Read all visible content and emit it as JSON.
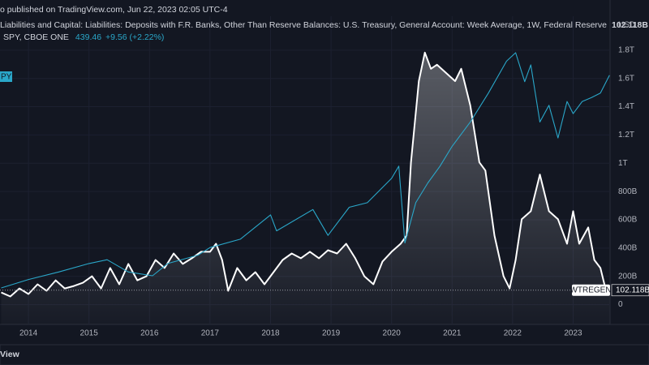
{
  "header": {
    "published": "o published on TradingView.com, Jun 22, 2023 02:05 UTC-4",
    "logo": "View"
  },
  "chart_data": {
    "type": "line",
    "title": "Liabilities and Capital: Liabilities: Deposits with F.R. Banks, Other Than Reserve Balances: U.S. Treasury, General Account: Week Average, 1W, Federal Reserve",
    "subtitle": "SPY, CBOE ONE",
    "change": "+9.56 (+2.22%)",
    "unit": "USD",
    "grid": true,
    "series": [
      {
        "name": "WTREGEN",
        "color": "#ffffff",
        "axis": "y",
        "x": [
          2013.55,
          2013.7,
          2013.85,
          2014.0,
          2014.15,
          2014.3,
          2014.45,
          2014.6,
          2014.75,
          2014.9,
          2015.05,
          2015.2,
          2015.35,
          2015.5,
          2015.65,
          2015.8,
          2015.95,
          2016.1,
          2016.25,
          2016.4,
          2016.55,
          2016.7,
          2016.85,
          2017.0,
          2017.1,
          2017.2,
          2017.3,
          2017.45,
          2017.6,
          2017.75,
          2017.9,
          2018.05,
          2018.2,
          2018.35,
          2018.5,
          2018.65,
          2018.8,
          2018.95,
          2019.1,
          2019.25,
          2019.4,
          2019.55,
          2019.7,
          2019.85,
          2020.0,
          2020.15,
          2020.25,
          2020.32,
          2020.45,
          2020.55,
          2020.65,
          2020.75,
          2020.9,
          2021.05,
          2021.15,
          2021.3,
          2021.45,
          2021.55,
          2021.7,
          2021.85,
          2021.95,
          2022.05,
          2022.15,
          2022.3,
          2022.45,
          2022.6,
          2022.75,
          2022.9,
          2023.0,
          2023.1,
          2023.25,
          2023.35,
          2023.45,
          2023.55,
          2023.6
        ],
        "values": [
          86,
          58,
          115,
          75,
          144,
          98,
          172,
          115,
          132,
          155,
          201,
          115,
          259,
          144,
          288,
          172,
          201,
          316,
          259,
          362,
          288,
          328,
          374,
          374,
          431,
          316,
          98,
          259,
          172,
          230,
          144,
          230,
          316,
          362,
          328,
          374,
          328,
          385,
          362,
          431,
          328,
          201,
          144,
          305,
          374,
          431,
          489,
          1006,
          1581,
          1783,
          1668,
          1697,
          1639,
          1581,
          1668,
          1409,
          1006,
          949,
          489,
          201,
          115,
          316,
          604,
          661,
          920,
          661,
          604,
          431,
          661,
          431,
          546,
          316,
          259,
          86,
          102.118
        ],
        "value_labels": [
          null,
          null,
          null,
          null,
          null,
          null,
          null,
          null,
          null,
          null,
          null,
          null,
          null,
          null,
          null,
          null,
          null,
          null,
          null,
          null,
          null,
          null,
          null,
          null,
          null,
          null,
          null,
          null,
          null,
          null,
          null,
          null,
          null,
          null,
          null,
          null,
          null,
          null,
          null,
          null,
          null,
          null,
          null,
          null,
          null,
          null,
          null,
          null,
          null,
          null,
          null,
          null,
          null,
          null,
          null,
          null,
          null,
          null,
          null,
          null,
          null,
          null,
          null,
          null,
          null,
          null,
          null,
          null,
          null,
          null,
          null,
          null,
          null,
          null,
          "102.118B"
        ]
      },
      {
        "name": "PY",
        "color": "#2aa7c9",
        "axis": "y2",
        "x": [
          2013.55,
          2014.0,
          2014.5,
          2015.0,
          2015.3,
          2015.65,
          2016.05,
          2016.3,
          2016.8,
          2017.0,
          2017.5,
          2018.0,
          2018.1,
          2018.7,
          2018.95,
          2019.3,
          2019.6,
          2020.0,
          2020.12,
          2020.22,
          2020.4,
          2020.6,
          2020.8,
          2021.0,
          2021.3,
          2021.6,
          2021.9,
          2022.05,
          2022.2,
          2022.3,
          2022.45,
          2022.6,
          2022.75,
          2022.9,
          2023.0,
          2023.15,
          2023.3,
          2023.45,
          2023.6
        ],
        "values": [
          160,
          171,
          181,
          192,
          197,
          181,
          176,
          192,
          203,
          213,
          224,
          256,
          235,
          263,
          229,
          266,
          272,
          304,
          320,
          219,
          272,
          298,
          320,
          346,
          378,
          416,
          458,
          469,
          431,
          453,
          378,
          400,
          357,
          405,
          389,
          405,
          410,
          416,
          439.46
        ],
        "value_labels": [
          null,
          null,
          null,
          null,
          null,
          null,
          null,
          null,
          null,
          null,
          null,
          null,
          null,
          null,
          null,
          null,
          null,
          null,
          null,
          null,
          null,
          null,
          null,
          null,
          null,
          null,
          null,
          null,
          null,
          null,
          null,
          null,
          null,
          null,
          null,
          null,
          null,
          null,
          "439.46"
        ]
      }
    ],
    "xlim": [
      2013.53,
      2023.61
    ],
    "xticks": [
      2014,
      2015,
      2016,
      2017,
      2018,
      2019,
      2020,
      2021,
      2022,
      2023
    ],
    "ylim": [
      -140,
      2040
    ],
    "yticks": [
      0,
      {
        "value": 200,
        "label": "200B"
      },
      {
        "value": 400,
        "label": "400B"
      },
      {
        "value": 600,
        "label": "600B"
      },
      {
        "value": 800,
        "label": "800B"
      },
      {
        "value": 1000,
        "label": "1T"
      },
      {
        "value": 1200,
        "label": "1.2T"
      },
      {
        "value": 1400,
        "label": "1.4T"
      },
      {
        "value": 1600,
        "label": "1.6T"
      },
      {
        "value": 1800,
        "label": "1.8T"
      }
    ],
    "y2lim": [
      112,
      517
    ]
  }
}
